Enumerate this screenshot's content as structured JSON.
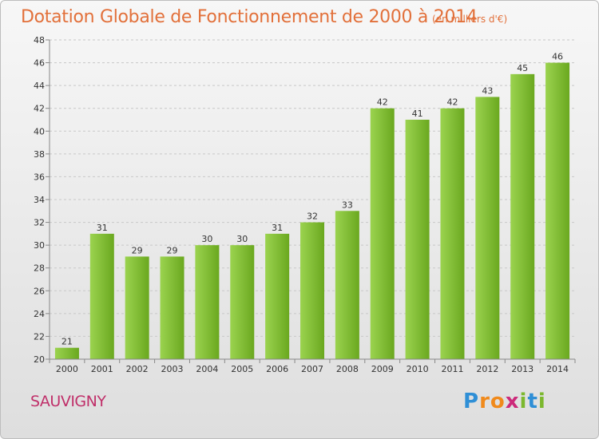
{
  "title": "Dotation Globale de Fonctionnement de 2000 à 2014",
  "unit": "(en milliers d'€)",
  "commune": "SAUVIGNY",
  "logo": {
    "text": "Proxiti",
    "letters": [
      {
        "ch": "P",
        "color": "#2f8fd6"
      },
      {
        "ch": "r",
        "color": "#f08a1c"
      },
      {
        "ch": "o",
        "color": "#f08a1c"
      },
      {
        "ch": "x",
        "color": "#cc2a7a"
      },
      {
        "ch": "i",
        "color": "#7cb82f"
      },
      {
        "ch": "t",
        "color": "#2f8fd6"
      },
      {
        "ch": "i",
        "color": "#7cb82f"
      }
    ]
  },
  "colors": {
    "title": "#e2703a",
    "commune": "#c0306a",
    "bar_light": "#9bd34f",
    "bar_dark": "#6aa81f"
  },
  "chart_data": {
    "type": "bar",
    "title": "Dotation Globale de Fonctionnement de 2000 à 2014",
    "categories": [
      "2000",
      "2001",
      "2002",
      "2003",
      "2004",
      "2005",
      "2006",
      "2007",
      "2008",
      "2009",
      "2010",
      "2011",
      "2012",
      "2013",
      "2014"
    ],
    "values": [
      21,
      31,
      29,
      29,
      30,
      30,
      31,
      32,
      33,
      42,
      41,
      42,
      43,
      45,
      46
    ],
    "ylim": [
      20,
      48
    ],
    "yticks": [
      20,
      22,
      24,
      26,
      28,
      30,
      32,
      34,
      36,
      38,
      40,
      42,
      44,
      46,
      48
    ],
    "grid": true,
    "data_labels": true
  }
}
